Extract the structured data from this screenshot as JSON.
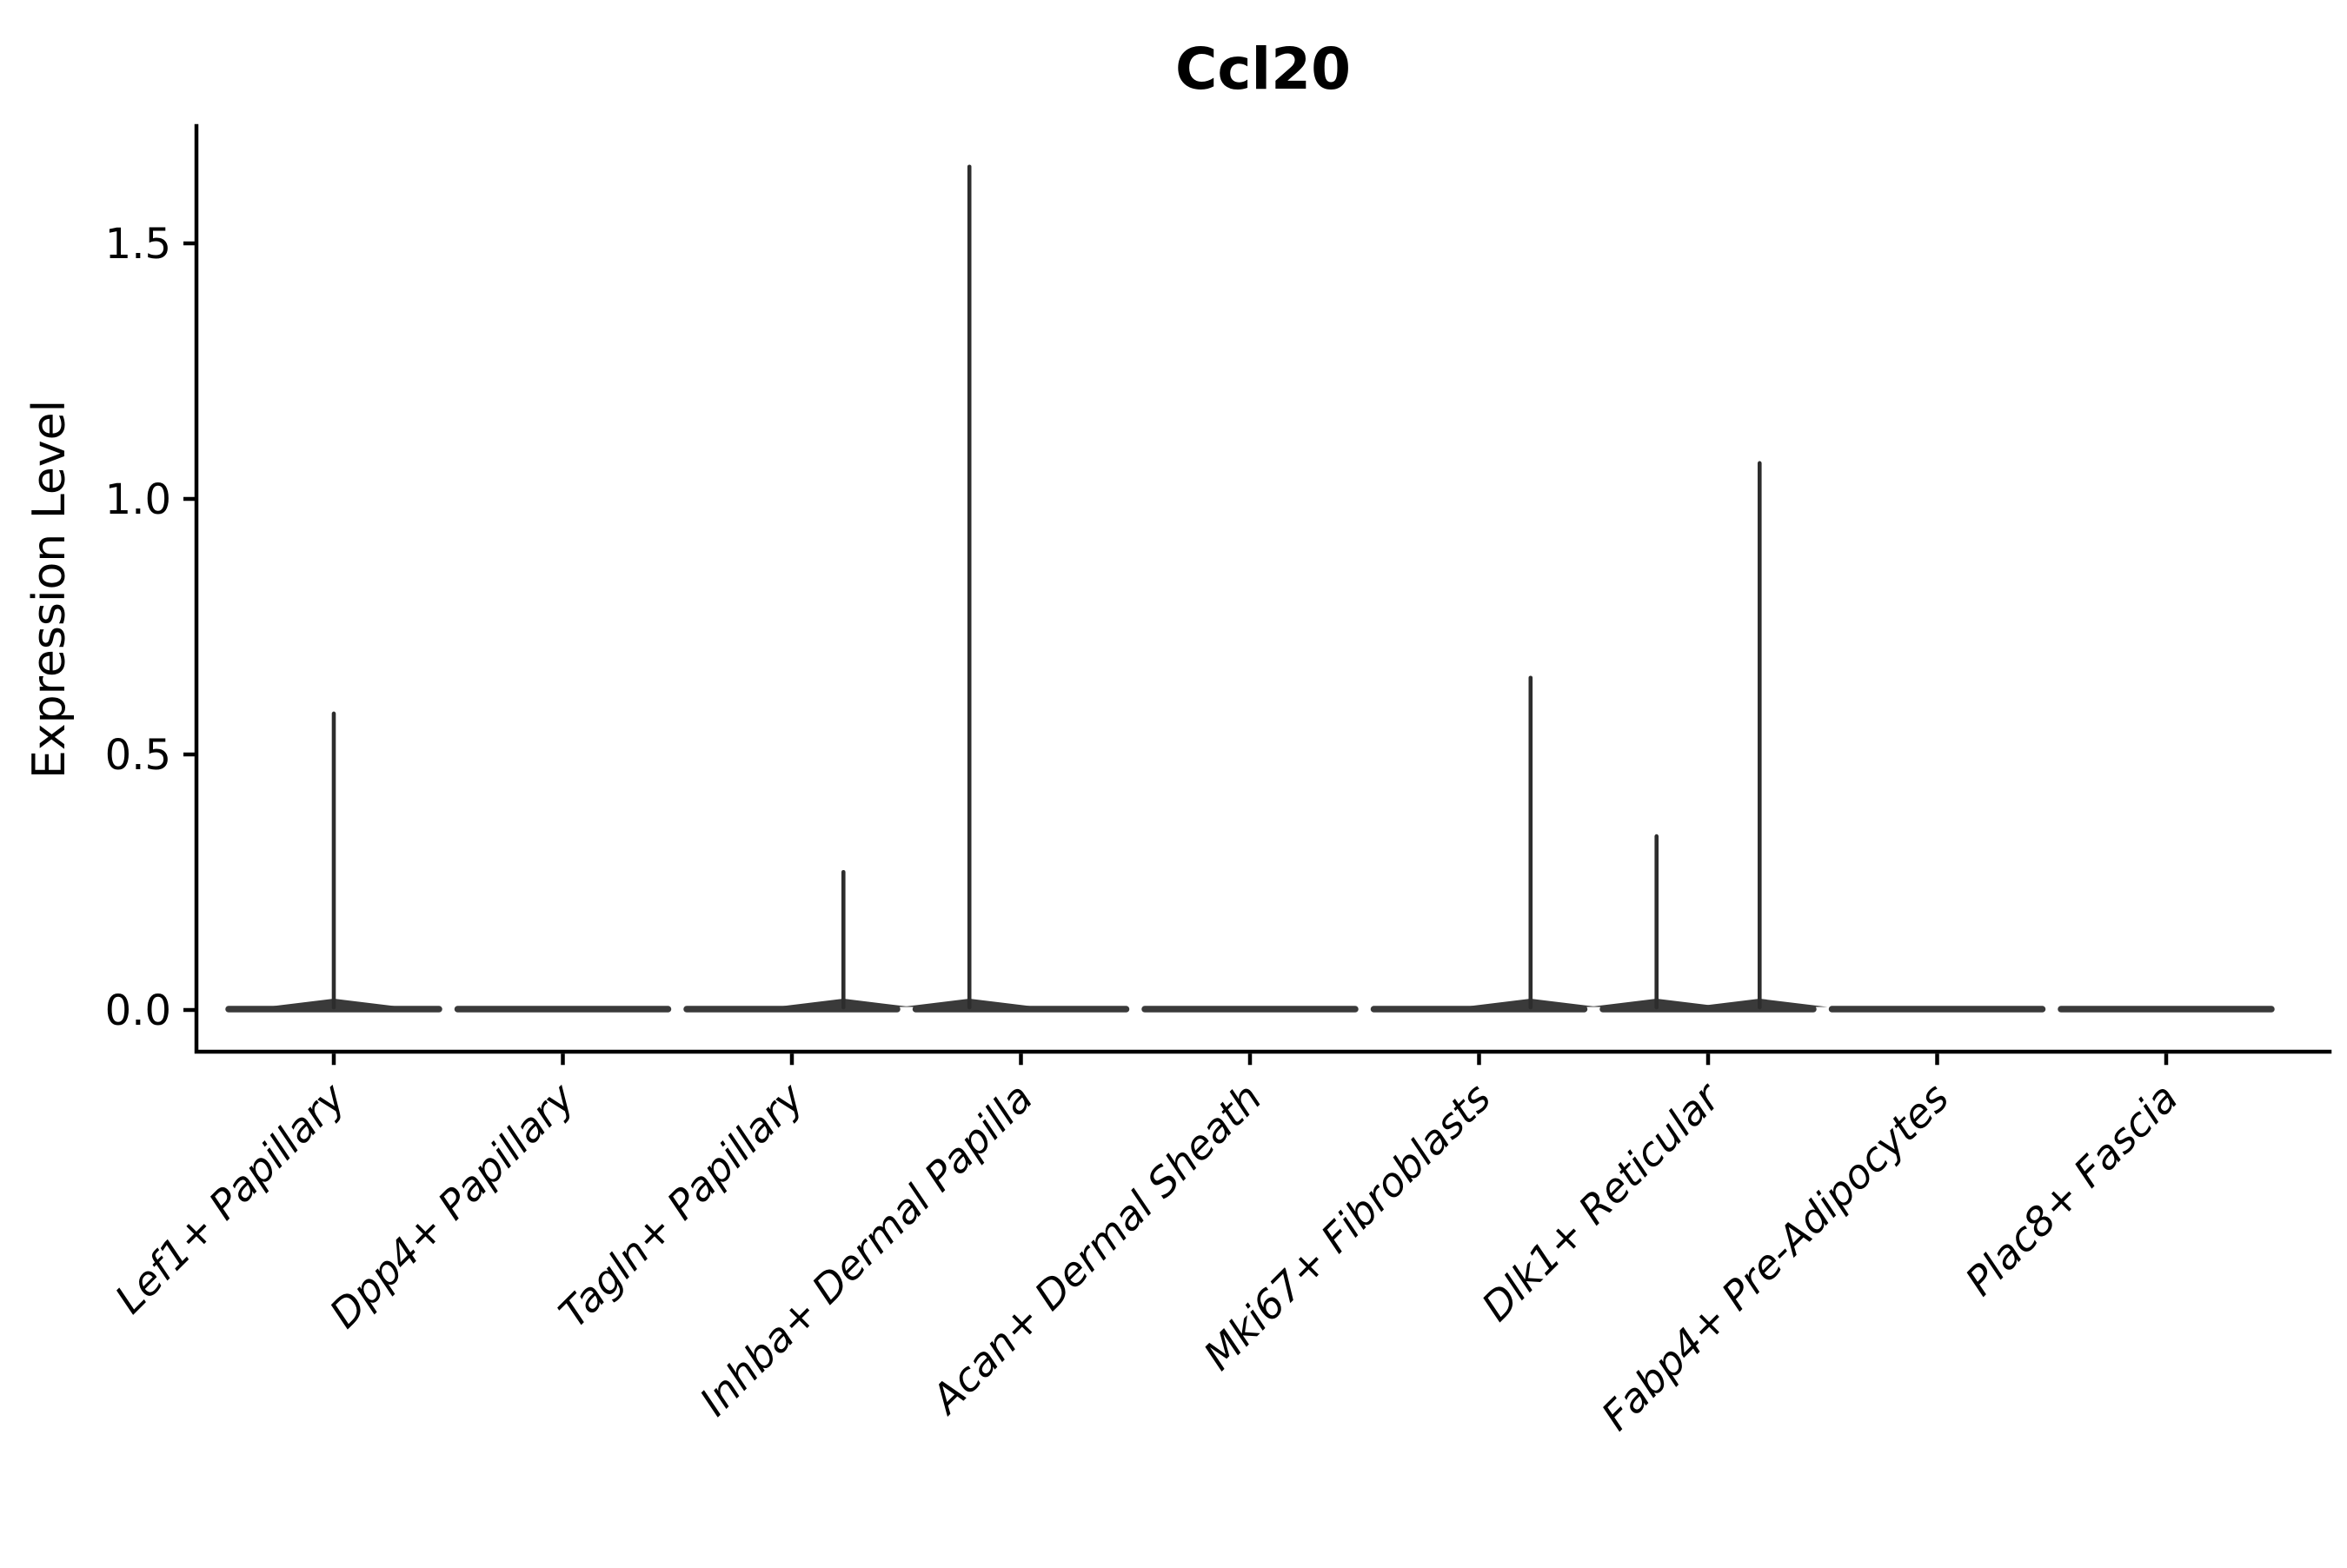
{
  "chart_data": {
    "type": "violin",
    "title": "Ccl20",
    "ylabel": "Expression Level",
    "xlabel": "",
    "grid": false,
    "legend": null,
    "ylim": [
      -0.08,
      1.73
    ],
    "yticks": [
      0.0,
      0.5,
      1.0,
      1.5
    ],
    "ytick_labels": [
      "0.0",
      "0.5",
      "1.0",
      "1.5"
    ],
    "categories": [
      "Lef1+ Papillary",
      "Dpp4+ Papillary",
      "Tagln+ Papillary",
      "Inhba+ Dermal Papilla",
      "Acan+ Dermal Sheath",
      "Mki67+ Fibroblasts",
      "Dlk1+ Reticular",
      "Fabp4+ Pre-Adipocytes",
      "Plac8+ Fascia"
    ],
    "violins": [
      {
        "category": "Lef1+ Papillary",
        "base_at_zero": true,
        "max_expression": 0.58,
        "spikes": [
          {
            "offset_frac": 0.0,
            "value": 0.58
          }
        ]
      },
      {
        "category": "Dpp4+ Papillary",
        "base_at_zero": true,
        "max_expression": 0.0,
        "spikes": []
      },
      {
        "category": "Tagln+ Papillary",
        "base_at_zero": true,
        "max_expression": 0.27,
        "spikes": [
          {
            "offset_frac": 0.225,
            "value": 0.27
          }
        ]
      },
      {
        "category": "Inhba+ Dermal Papilla",
        "base_at_zero": true,
        "max_expression": 1.65,
        "spikes": [
          {
            "offset_frac": -0.225,
            "value": 1.65
          }
        ]
      },
      {
        "category": "Acan+ Dermal Sheath",
        "base_at_zero": true,
        "max_expression": 0.0,
        "spikes": []
      },
      {
        "category": "Mki67+ Fibroblasts",
        "base_at_zero": true,
        "max_expression": 0.65,
        "spikes": [
          {
            "offset_frac": 0.225,
            "value": 0.65
          }
        ]
      },
      {
        "category": "Dlk1+ Reticular",
        "base_at_zero": true,
        "max_expression": 1.07,
        "spikes": [
          {
            "offset_frac": -0.225,
            "value": 0.34
          },
          {
            "offset_frac": 0.225,
            "value": 1.07
          }
        ]
      },
      {
        "category": "Fabp4+ Pre-Adipocytes",
        "base_at_zero": true,
        "max_expression": 0.0,
        "spikes": []
      },
      {
        "category": "Plac8+ Fascia",
        "base_at_zero": true,
        "max_expression": 0.0,
        "spikes": []
      }
    ],
    "colors": {
      "violin_body": "#3a3a3a",
      "violin_spike": "#2d2d2d",
      "axis": "#000000",
      "text": "#000000",
      "background": "#ffffff"
    }
  }
}
